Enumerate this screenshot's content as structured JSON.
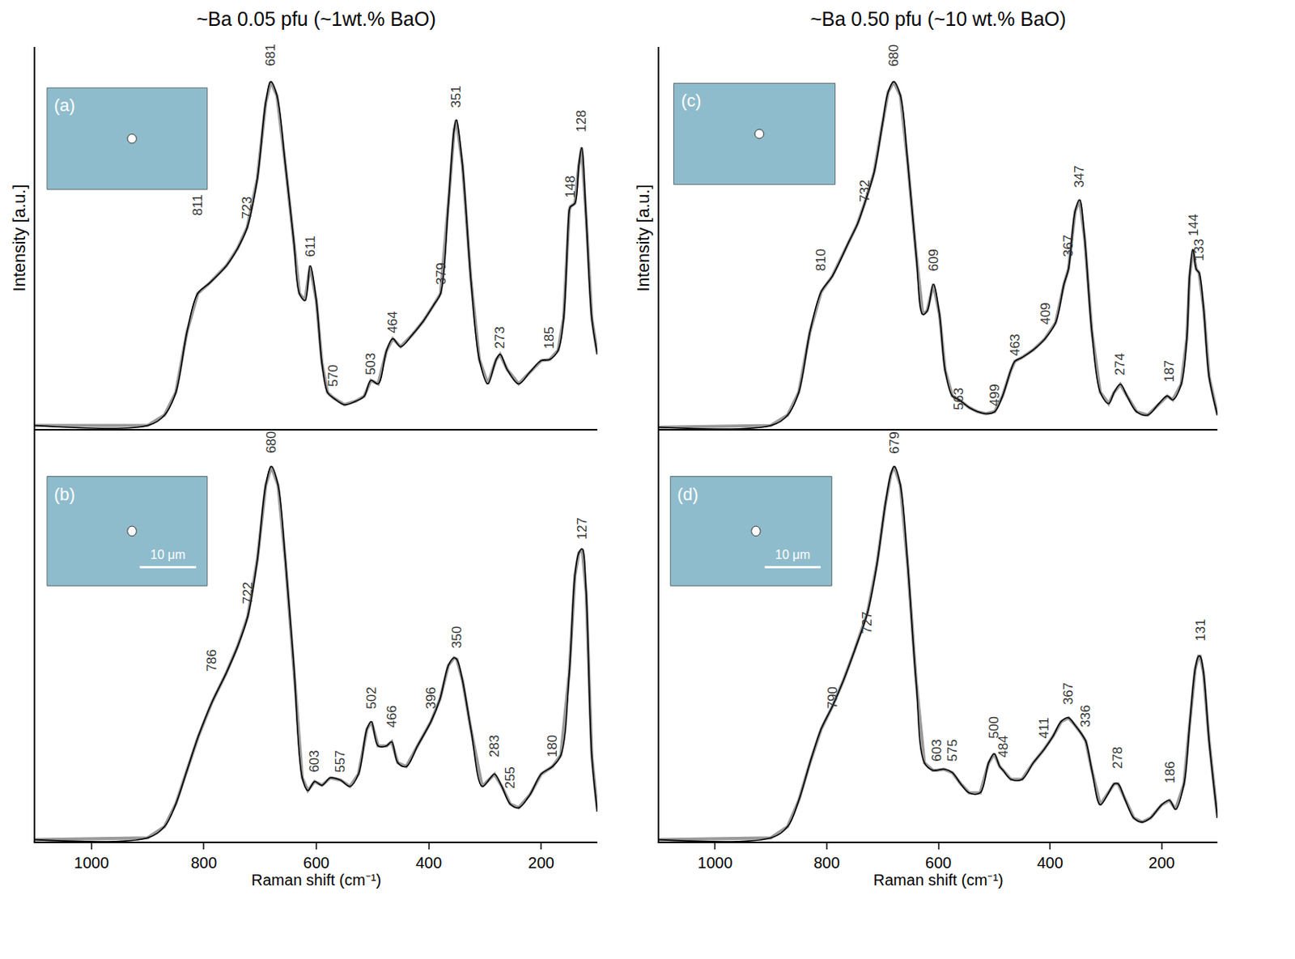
{
  "chart_data": [
    {
      "panel": "(a)",
      "type": "line",
      "title": "~Ba 0.05 pfu (~1wt.% BaO)",
      "y_label": "Intensity [a.u.]",
      "tick_labels": false,
      "color": "#000000",
      "xlim": [
        1100,
        100
      ],
      "ylim": [
        0,
        110
      ],
      "x": [
        1100,
        900,
        870,
        850,
        830,
        811,
        790,
        760,
        740,
        723,
        705,
        690,
        681,
        670,
        655,
        640,
        630,
        620,
        611,
        600,
        590,
        580,
        570,
        550,
        530,
        515,
        503,
        490,
        475,
        464,
        450,
        430,
        410,
        390,
        379,
        365,
        355,
        351,
        340,
        325,
        310,
        295,
        280,
        273,
        260,
        240,
        220,
        200,
        185,
        170,
        160,
        150,
        148,
        140,
        133,
        128,
        120,
        110,
        100
      ],
      "values": [
        1,
        1,
        4,
        10.5,
        28,
        39,
        42,
        47,
        52,
        58,
        72,
        94,
        100,
        96,
        76,
        54,
        39,
        37,
        47,
        37,
        19,
        10.5,
        9,
        7,
        8,
        9.4,
        14,
        13,
        22.6,
        26,
        23.7,
        27,
        31,
        36,
        39,
        65,
        86,
        89,
        76,
        43,
        20,
        13,
        20,
        21.5,
        17,
        13,
        16.4,
        19.7,
        20,
        22.6,
        32,
        63,
        64,
        65,
        76,
        81,
        61,
        32,
        21.5
      ],
      "annotations": [
        {
          "x": 811,
          "y": 61,
          "text": "811"
        },
        {
          "x": 723,
          "y": 60,
          "text": "723"
        },
        {
          "x": 681,
          "y": 104,
          "text": "681"
        },
        {
          "x": 611,
          "y": 49,
          "text": "611"
        },
        {
          "x": 570,
          "y": 11.6,
          "text": "570"
        },
        {
          "x": 503,
          "y": 15,
          "text": "503"
        },
        {
          "x": 464,
          "y": 27,
          "text": "464"
        },
        {
          "x": 379,
          "y": 41,
          "text": "379"
        },
        {
          "x": 351,
          "y": 92,
          "text": "351"
        },
        {
          "x": 273,
          "y": 22.6,
          "text": "273"
        },
        {
          "x": 185,
          "y": 22.6,
          "text": "185"
        },
        {
          "x": 148,
          "y": 66,
          "text": "148"
        },
        {
          "x": 128,
          "y": 85,
          "text": "128"
        }
      ]
    },
    {
      "panel": "(b)",
      "type": "line",
      "x_label": "Raman shift (cm⁻¹)",
      "scale_label": "10 μm",
      "tick_labels": "x",
      "color": "#000000",
      "xlim": [
        1100,
        100
      ],
      "ylim": [
        0,
        110
      ],
      "xticks": [
        1000,
        800,
        600,
        400,
        200
      ],
      "x": [
        1100,
        900,
        870,
        850,
        830,
        810,
        786,
        760,
        740,
        722,
        705,
        690,
        680,
        668,
        655,
        640,
        625,
        615,
        603,
        590,
        575,
        557,
        540,
        525,
        510,
        502,
        490,
        475,
        466,
        455,
        440,
        420,
        396,
        380,
        365,
        355,
        350,
        340,
        325,
        305,
        290,
        283,
        270,
        255,
        240,
        220,
        200,
        180,
        165,
        150,
        140,
        133,
        127,
        120,
        110,
        100
      ],
      "values": [
        0.5,
        1,
        4,
        10,
        19,
        28,
        37,
        45,
        52,
        60,
        75,
        95,
        100,
        95,
        75,
        47,
        17,
        13.6,
        16,
        15,
        17,
        16.4,
        14.7,
        18,
        30,
        32,
        25.5,
        25.5,
        26.6,
        21,
        20,
        25.5,
        32,
        38,
        47,
        49,
        48.6,
        43,
        30,
        14.7,
        17,
        18,
        14.7,
        10,
        9,
        12.5,
        18,
        20,
        23,
        45,
        71,
        77,
        78,
        66.5,
        23,
        8
      ],
      "annotations": [
        {
          "x": 786,
          "y": 45,
          "text": "786"
        },
        {
          "x": 722,
          "y": 63,
          "text": "722"
        },
        {
          "x": 680,
          "y": 103,
          "text": "680"
        },
        {
          "x": 603,
          "y": 18,
          "text": "603"
        },
        {
          "x": 557,
          "y": 18,
          "text": "557"
        },
        {
          "x": 502,
          "y": 35,
          "text": "502"
        },
        {
          "x": 466,
          "y": 30,
          "text": "466"
        },
        {
          "x": 396,
          "y": 35,
          "text": "396"
        },
        {
          "x": 350,
          "y": 51,
          "text": "350"
        },
        {
          "x": 283,
          "y": 22,
          "text": "283"
        },
        {
          "x": 255,
          "y": 13.6,
          "text": "255"
        },
        {
          "x": 180,
          "y": 22,
          "text": "180"
        },
        {
          "x": 127,
          "y": 80,
          "text": "127"
        }
      ]
    },
    {
      "panel": "(c)",
      "type": "line",
      "title": "~Ba 0.50 pfu (~10 wt.% BaO)",
      "y_label": "Intensity [a.u.]",
      "tick_labels": false,
      "color": "#000000",
      "xlim": [
        1100,
        100
      ],
      "ylim": [
        0,
        110
      ],
      "x": [
        1100,
        900,
        870,
        850,
        830,
        810,
        790,
        760,
        745,
        732,
        715,
        700,
        690,
        680,
        668,
        655,
        640,
        628,
        620,
        609,
        598,
        588,
        575,
        563,
        545,
        530,
        515,
        499,
        485,
        470,
        463,
        450,
        430,
        409,
        390,
        375,
        367,
        355,
        347,
        338,
        325,
        310,
        295,
        285,
        274,
        262,
        245,
        225,
        205,
        190,
        180,
        165,
        155,
        150,
        144,
        138,
        133,
        125,
        115,
        100
      ],
      "values": [
        0.5,
        1,
        4,
        10.6,
        28,
        39.5,
        44,
        54,
        59,
        65,
        74,
        88,
        97,
        100,
        96,
        77,
        50.5,
        33,
        34,
        41.7,
        33,
        17,
        9.5,
        8.4,
        6.2,
        5,
        4.4,
        5,
        9.5,
        17,
        19.5,
        20.6,
        22.8,
        26,
        30.6,
        41.7,
        46,
        62.7,
        66,
        55,
        28,
        10.6,
        7.3,
        10.6,
        12.9,
        9.5,
        5,
        4,
        7.3,
        9.5,
        8.4,
        12.9,
        26,
        44,
        51.7,
        46,
        45,
        35,
        15,
        4
      ],
      "annotations": [
        {
          "x": 810,
          "y": 45,
          "text": "810"
        },
        {
          "x": 732,
          "y": 65,
          "text": "732"
        },
        {
          "x": 680,
          "y": 104,
          "text": "680"
        },
        {
          "x": 609,
          "y": 45,
          "text": "609"
        },
        {
          "x": 563,
          "y": 5,
          "text": "563"
        },
        {
          "x": 499,
          "y": 6,
          "text": "499"
        },
        {
          "x": 463,
          "y": 20.6,
          "text": "463"
        },
        {
          "x": 409,
          "y": 29.5,
          "text": "409"
        },
        {
          "x": 367,
          "y": 49,
          "text": "367"
        },
        {
          "x": 347,
          "y": 69,
          "text": "347"
        },
        {
          "x": 274,
          "y": 15,
          "text": "274"
        },
        {
          "x": 187,
          "y": 13,
          "text": "187"
        },
        {
          "x": 144,
          "y": 55,
          "text": "144"
        },
        {
          "x": 133,
          "y": 48,
          "text": "133"
        }
      ]
    },
    {
      "panel": "(d)",
      "type": "line",
      "x_label": "Raman shift (cm⁻¹)",
      "scale_label": "10 μm",
      "tick_labels": "x",
      "color": "#000000",
      "xlim": [
        1100,
        100
      ],
      "ylim": [
        0,
        110
      ],
      "xticks": [
        1000,
        800,
        600,
        400,
        200
      ],
      "x": [
        1100,
        900,
        870,
        850,
        830,
        810,
        790,
        770,
        750,
        727,
        710,
        695,
        685,
        679,
        668,
        655,
        640,
        625,
        610,
        603,
        590,
        575,
        560,
        545,
        525,
        510,
        500,
        490,
        484,
        470,
        450,
        430,
        411,
        395,
        380,
        367,
        355,
        345,
        336,
        325,
        310,
        295,
        285,
        278,
        265,
        250,
        235,
        220,
        200,
        186,
        175,
        160,
        150,
        140,
        134,
        131,
        125,
        115,
        100
      ],
      "values": [
        0.5,
        1,
        4,
        11,
        21,
        30,
        36,
        43,
        51,
        61,
        74,
        90,
        98,
        100,
        95,
        74,
        43,
        21,
        19,
        19,
        19.3,
        18.4,
        15.4,
        13,
        13,
        21,
        23.4,
        20,
        19,
        16.6,
        16.6,
        21,
        24.5,
        28,
        32,
        33,
        31,
        29,
        26.8,
        19,
        9.8,
        13,
        15.4,
        15.4,
        11,
        6.3,
        5.2,
        6.3,
        9.8,
        11,
        8.6,
        15.4,
        31,
        46,
        49.4,
        49.4,
        45,
        26.8,
        6.3
      ],
      "annotations": [
        {
          "x": 790,
          "y": 35,
          "text": "790"
        },
        {
          "x": 727,
          "y": 55,
          "text": "727"
        },
        {
          "x": 679,
          "y": 103,
          "text": "679"
        },
        {
          "x": 603,
          "y": 21,
          "text": "603"
        },
        {
          "x": 575,
          "y": 21,
          "text": "575"
        },
        {
          "x": 500,
          "y": 27,
          "text": "500"
        },
        {
          "x": 484,
          "y": 22,
          "text": "484"
        },
        {
          "x": 411,
          "y": 27,
          "text": "411"
        },
        {
          "x": 367,
          "y": 36,
          "text": "367"
        },
        {
          "x": 336,
          "y": 30,
          "text": "336"
        },
        {
          "x": 278,
          "y": 19,
          "text": "278"
        },
        {
          "x": 186,
          "y": 15,
          "text": "186"
        },
        {
          "x": 131,
          "y": 53,
          "text": "131"
        }
      ]
    }
  ]
}
